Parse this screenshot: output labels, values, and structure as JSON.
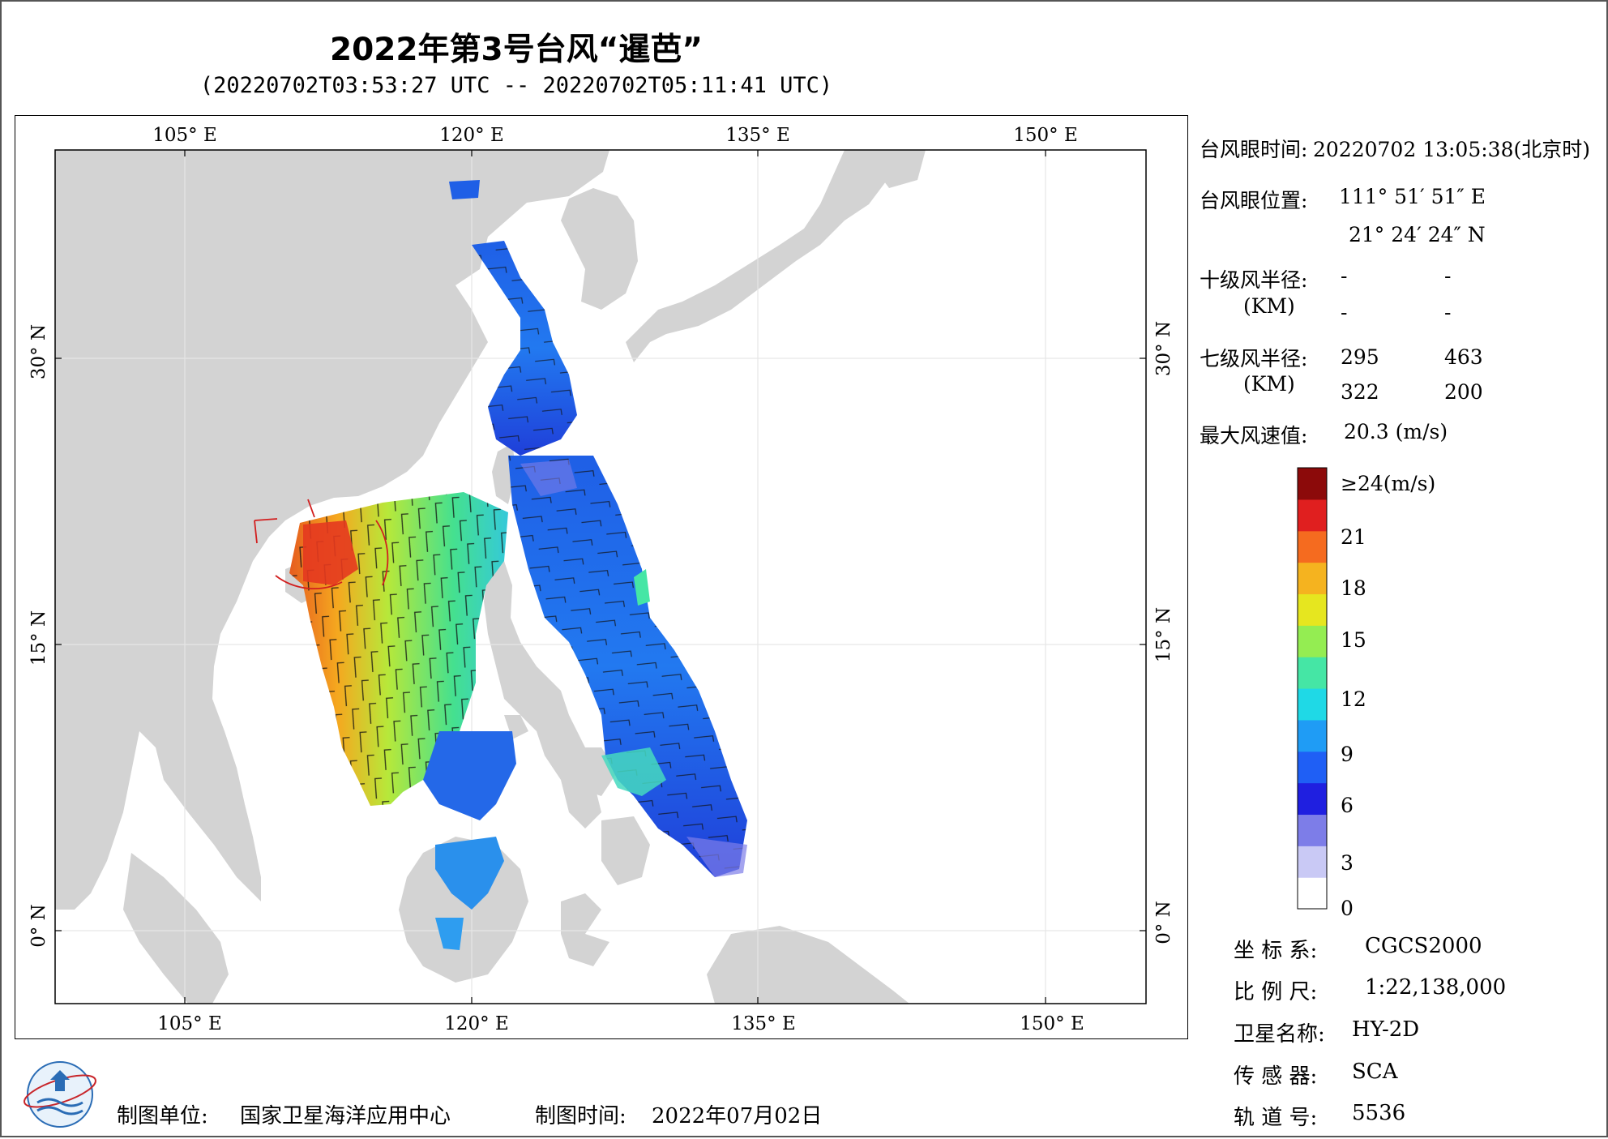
{
  "title": "2022年第3号台风“暹芭”",
  "subtitle": "(20220702T03:53:27 UTC -- 20220702T05:11:41 UTC)",
  "map": {
    "lon_ticks": [
      "105° E",
      "120° E",
      "135° E",
      "150° E"
    ],
    "lat_ticks": [
      "30° N",
      "15° N",
      "0° N"
    ],
    "land_color": "#d3d3d3",
    "sea_color": "#ffffff",
    "grid": true
  },
  "typhoon_info": {
    "eye_time_label": "台风眼时间:",
    "eye_time_value": "20220702 13:05:38(北京时)",
    "eye_pos_label": "台风眼位置:",
    "eye_lon": "111° 51′ 51″ E",
    "eye_lat": "21° 24′ 24″ N",
    "r10_label": "十级风半径:",
    "r10_unit": "(KM)",
    "r10_values": [
      "-",
      "-",
      "-",
      "-"
    ],
    "r7_label": "七级风半径:",
    "r7_unit": "(KM)",
    "r7_values": [
      "295",
      "463",
      "322",
      "200"
    ],
    "max_wind_label": "最大风速值:",
    "max_wind_value": "20.3 (m/s)"
  },
  "colorbar": {
    "labels": [
      "≥24(m/s)",
      "21",
      "18",
      "15",
      "12",
      "9",
      "6",
      "3",
      "0"
    ],
    "colors": [
      "#ffffff",
      "#c9c9f5",
      "#7d7de8",
      "#1f1fe0",
      "#1f5ff5",
      "#1f9cf5",
      "#1fd9e6",
      "#45e6a5",
      "#94ed52",
      "#e6e61f",
      "#f5b31f",
      "#f56b1f",
      "#e01f1f",
      "#8c0a0a"
    ]
  },
  "meta": {
    "crs_label": "坐 标 系:",
    "crs_value": "CGCS2000",
    "scale_label": "比 例 尺:",
    "scale_value": "1:22,138,000",
    "satellite_label": "卫星名称:",
    "satellite_value": "HY-2D",
    "sensor_label": "传 感 器:",
    "sensor_value": "SCA",
    "orbit_label": "轨 道 号:",
    "orbit_value": "5536"
  },
  "footer": {
    "org_label": "制图单位:",
    "org_value": "国家卫星海洋应用中心",
    "date_label": "制图时间:",
    "date_value": "2022年07月02日"
  }
}
